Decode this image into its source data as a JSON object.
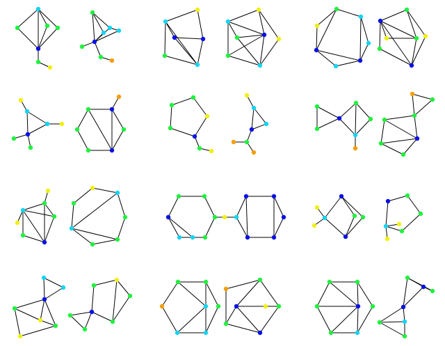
{
  "palette": {
    "b": "#0a10e8",
    "c": "#14d4f2",
    "g": "#1ef23c",
    "y": "#f0f014",
    "o": "#f59e0b"
  },
  "graphs": [
    {
      "name": "graph-r1c1a"
    },
    {
      "name": "graph-r1c1b"
    },
    {
      "name": "graph-r1c2a"
    },
    {
      "name": "graph-r1c2b"
    },
    {
      "name": "graph-r1c3a"
    },
    {
      "name": "graph-r1c3b"
    },
    {
      "name": "graph-r2c1a"
    },
    {
      "name": "graph-r2c1b"
    },
    {
      "name": "graph-r2c2a"
    },
    {
      "name": "graph-r2c2b"
    },
    {
      "name": "graph-r2c3a"
    },
    {
      "name": "graph-r2c3b"
    },
    {
      "name": "graph-r3c1a"
    },
    {
      "name": "graph-r3c1b"
    },
    {
      "name": "graph-r3c2a"
    },
    {
      "name": "graph-r3c3a"
    },
    {
      "name": "graph-r3c3b"
    },
    {
      "name": "graph-r4c1a"
    },
    {
      "name": "graph-r4c1b"
    },
    {
      "name": "graph-r4c2a"
    },
    {
      "name": "graph-r4c2b"
    },
    {
      "name": "graph-r4c3a"
    },
    {
      "name": "graph-r4c3b"
    }
  ]
}
